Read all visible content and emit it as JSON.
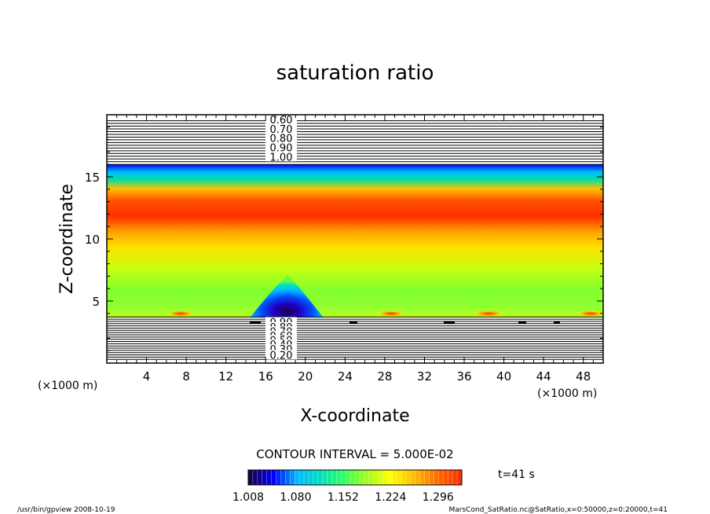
{
  "chart_data": {
    "type": "heatmap",
    "title": "saturation ratio",
    "xlabel": "X-coordinate",
    "ylabel": "Z-coordinate",
    "x_unit": "(×1000 m)",
    "y_unit": "(×1000 m)",
    "xlim": [
      0,
      50
    ],
    "ylim": [
      0,
      20
    ],
    "x_ticks": [
      4,
      8,
      12,
      16,
      20,
      24,
      28,
      32,
      36,
      40,
      44,
      48
    ],
    "y_ticks": [
      5,
      10,
      15
    ],
    "contour_labels_upper": [
      "0.60",
      "0.70",
      "0.80",
      "0.90",
      "1.00"
    ],
    "contour_labels_lower": [
      "0.90",
      "0.80",
      "0.70",
      "0.60",
      "0.50",
      "0.40",
      "0.30",
      "0.20"
    ],
    "contour_interval": "CONTOUR INTERVAL = 5.000E-02",
    "colorbar_ticks": [
      "1.008",
      "1.080",
      "1.152",
      "1.224",
      "1.296"
    ],
    "colorbar_range": [
      1.008,
      1.332
    ],
    "time_label": "t=41 s",
    "colors": [
      "#18004c",
      "#0000ff",
      "#00b8ff",
      "#00e0c0",
      "#30ff60",
      "#a0ff20",
      "#ffff00",
      "#ffc000",
      "#ff7000",
      "#ff3000"
    ]
  },
  "footer": {
    "left": "/usr/bin/gpview   2008-10-19",
    "right": "MarsCond_SatRatio.nc@SatRatio,x=0:50000,z=0:20000,t=41"
  }
}
